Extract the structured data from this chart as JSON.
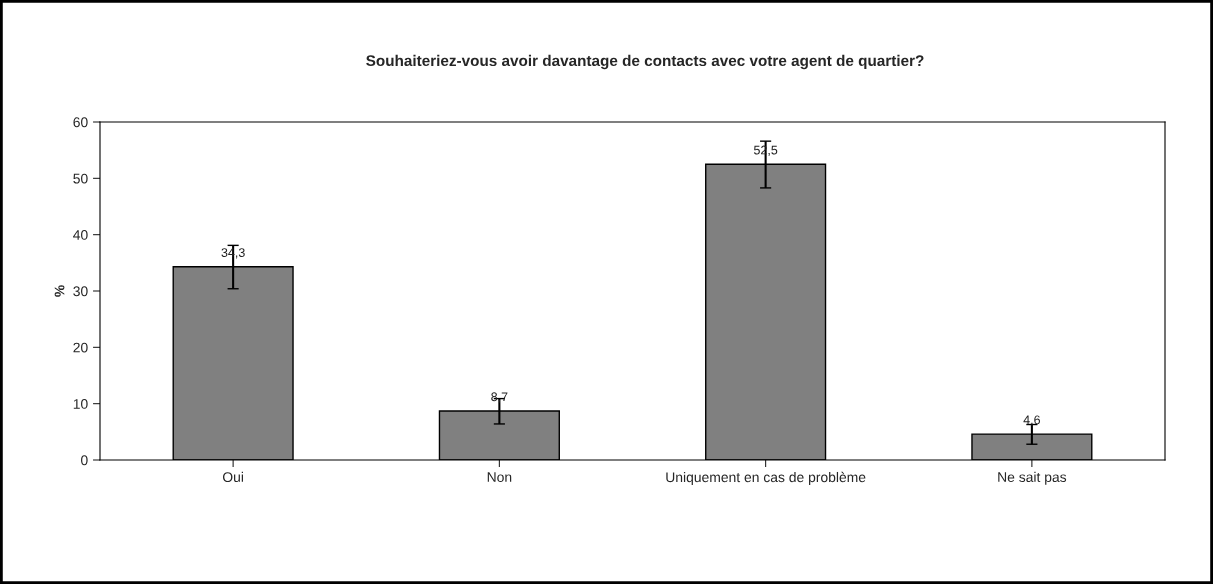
{
  "chart_data": {
    "type": "bar",
    "title": "Souhaiteriez-vous avoir davantage de contacts avec votre agent de quartier?",
    "ylabel": "%",
    "categories": [
      "Oui",
      "Non",
      "Uniquement en cas de problème",
      "Ne sait pas"
    ],
    "values": [
      34.3,
      8.7,
      52.5,
      4.6
    ],
    "value_labels": [
      "34,3",
      "8,7",
      "52,5",
      "4,6"
    ],
    "errors": [
      [
        30.4,
        38.1
      ],
      [
        6.4,
        10.9
      ],
      [
        48.3,
        56.6
      ],
      [
        2.8,
        6.3
      ]
    ],
    "color": "#808080",
    "ylim": [
      0,
      60
    ],
    "yticks": [
      0,
      10,
      20,
      30,
      40,
      50,
      60
    ],
    "grid": false,
    "legend": false
  }
}
